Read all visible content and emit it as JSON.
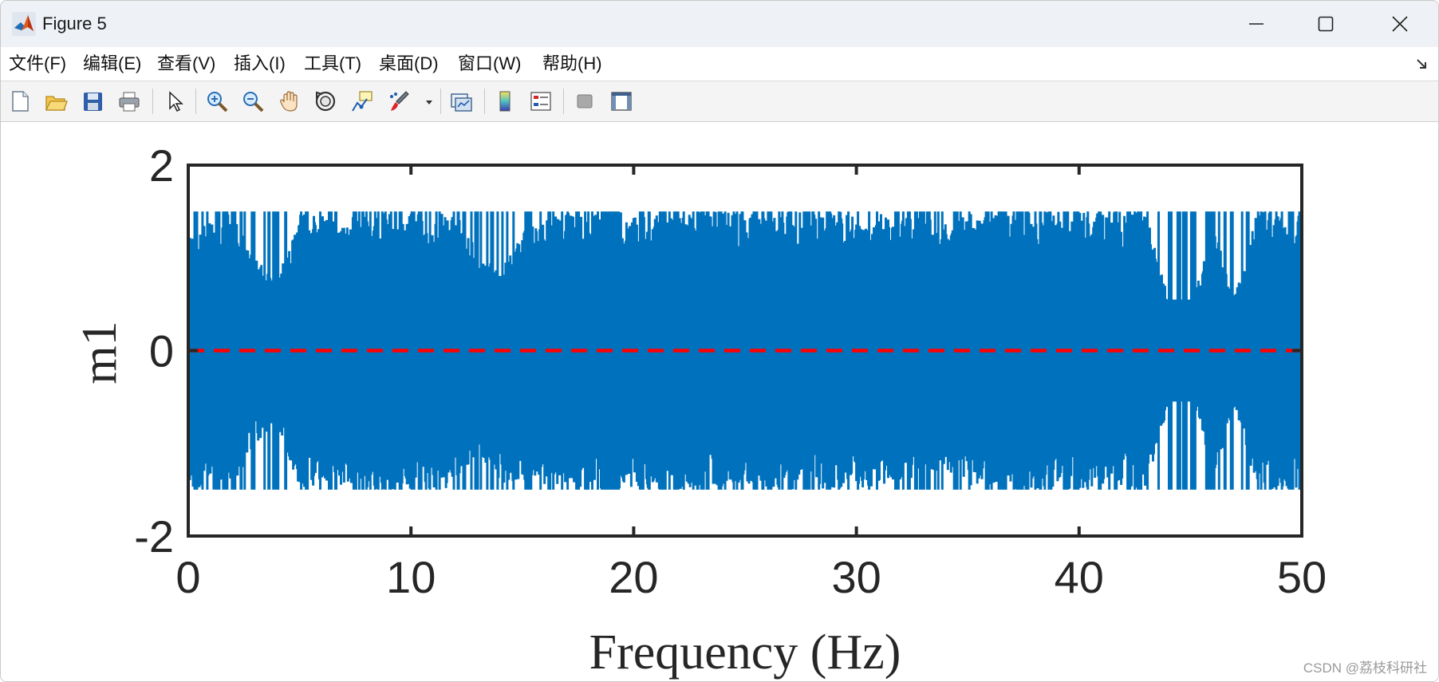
{
  "window": {
    "title": "Figure 5",
    "icon": "matlab-logo-icon",
    "controls": [
      "minimize-icon",
      "maximize-icon",
      "close-icon"
    ]
  },
  "menu": {
    "items": [
      {
        "label": "文件(F)"
      },
      {
        "label": "编辑(E)"
      },
      {
        "label": "查看(V)"
      },
      {
        "label": "插入(I)"
      },
      {
        "label": "工具(T)"
      },
      {
        "label": "桌面(D)"
      },
      {
        "label": "窗口(W)"
      },
      {
        "label": "帮助(H)"
      }
    ],
    "dock_icon": "dock-arrow-icon"
  },
  "toolbar": {
    "buttons": [
      "new-figure-icon",
      "open-file-icon",
      "save-icon",
      "print-icon",
      "select-arrow-icon",
      "zoom-in-icon",
      "zoom-out-icon",
      "pan-hand-icon",
      "rotate-3d-icon",
      "data-cursor-icon",
      "brush-icon",
      "link-plot-icon",
      "colorbar-icon",
      "legend-icon",
      "hide-plot-tools-icon",
      "show-plot-tools-icon"
    ]
  },
  "chart_data": {
    "type": "line",
    "xlabel": "Frequency (Hz)",
    "ylabel": "m1",
    "xlim": [
      0,
      50
    ],
    "ylim": [
      -2,
      2
    ],
    "xticks": [
      "0",
      "10",
      "20",
      "30",
      "40",
      "50"
    ],
    "yticks": [
      "2",
      "0",
      "-2"
    ],
    "grid": false,
    "series": [
      {
        "color": "#0072BD",
        "style": "solid",
        "x": [
          0,
          2,
          3,
          4,
          5,
          6,
          8,
          10,
          12,
          13,
          14,
          15,
          17,
          20,
          25,
          30,
          34,
          35,
          37,
          40,
          43,
          44,
          45,
          46,
          47,
          48,
          50
        ],
        "envelope_upper": [
          1.3,
          1.5,
          1.0,
          0.8,
          1.5,
          1.45,
          1.5,
          1.5,
          1.5,
          1.1,
          0.85,
          1.3,
          1.5,
          1.5,
          1.5,
          1.5,
          1.4,
          1.5,
          1.5,
          1.5,
          1.5,
          0.6,
          0.4,
          1.4,
          0.6,
          1.5,
          1.5
        ],
        "envelope_lower": [
          -1.5,
          -1.5,
          -1.0,
          -0.8,
          -1.5,
          -1.45,
          -1.5,
          -1.5,
          -1.5,
          -1.1,
          -1.45,
          -1.4,
          -1.5,
          -1.5,
          -1.5,
          -1.5,
          -1.3,
          -1.45,
          -1.5,
          -1.5,
          -1.5,
          -0.6,
          -0.4,
          -1.4,
          -0.6,
          -1.5,
          -1.5
        ]
      },
      {
        "color": "#FF0000",
        "style": "dashed",
        "x": [
          0,
          50
        ],
        "y": [
          0,
          0
        ]
      }
    ]
  },
  "watermark": "CSDN @荔枝科研社"
}
